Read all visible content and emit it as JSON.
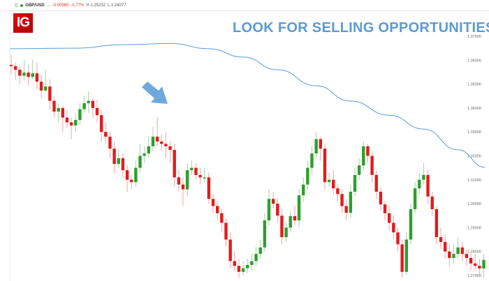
{
  "header": {
    "symbol": "GBP/USD",
    "change": "-0.00960",
    "change_pct": "-0.77%",
    "high": "H 1.25232",
    "low": "L 1.24077",
    "status_color": "#2ca02c"
  },
  "logo": {
    "text": "IG"
  },
  "headline": "LOOK FOR SELLING OPPORTUNITIES",
  "colors": {
    "up": "#2ca02c",
    "down": "#e31b1b",
    "ma": "#5b9bd5",
    "arrow": "#6fa8dc"
  },
  "chart_data": {
    "type": "candlestick",
    "title": "",
    "ylim": [
      1.2675,
      1.3745
    ],
    "yticks": [
      "1.37000",
      "1.36000",
      "1.35000",
      "1.34000",
      "1.33000",
      "1.32000",
      "1.31000",
      "1.30000",
      "1.29000",
      "1.28000",
      "1.27000"
    ],
    "grid": false,
    "ohlc": [
      [
        1.358,
        1.3625,
        1.354,
        1.3575
      ],
      [
        1.3575,
        1.359,
        1.352,
        1.356
      ],
      [
        1.356,
        1.3575,
        1.35,
        1.3535
      ],
      [
        1.3535,
        1.36,
        1.3515,
        1.3548
      ],
      [
        1.3548,
        1.358,
        1.3495,
        1.353
      ],
      [
        1.353,
        1.3605,
        1.352,
        1.3545
      ],
      [
        1.3545,
        1.359,
        1.348,
        1.351
      ],
      [
        1.351,
        1.354,
        1.344,
        1.3473
      ],
      [
        1.3473,
        1.356,
        1.3465,
        1.349
      ],
      [
        1.349,
        1.352,
        1.3395,
        1.343
      ],
      [
        1.343,
        1.345,
        1.336,
        1.3385
      ],
      [
        1.3385,
        1.342,
        1.334,
        1.34
      ],
      [
        1.34,
        1.341,
        1.33,
        1.336
      ],
      [
        1.336,
        1.339,
        1.332,
        1.334
      ],
      [
        1.334,
        1.336,
        1.327,
        1.3327
      ],
      [
        1.3327,
        1.338,
        1.33,
        1.335
      ],
      [
        1.335,
        1.342,
        1.333,
        1.3395
      ],
      [
        1.3395,
        1.345,
        1.338,
        1.342
      ],
      [
        1.342,
        1.347,
        1.338,
        1.343
      ],
      [
        1.343,
        1.344,
        1.336,
        1.34
      ],
      [
        1.34,
        1.3435,
        1.334,
        1.337
      ],
      [
        1.337,
        1.339,
        1.326,
        1.33
      ],
      [
        1.33,
        1.334,
        1.325,
        1.328
      ],
      [
        1.328,
        1.33,
        1.319,
        1.323
      ],
      [
        1.323,
        1.326,
        1.313,
        1.3166
      ],
      [
        1.3166,
        1.323,
        1.315,
        1.319
      ],
      [
        1.319,
        1.321,
        1.311,
        1.314
      ],
      [
        1.314,
        1.316,
        1.305,
        1.31
      ],
      [
        1.31,
        1.312,
        1.306,
        1.309
      ],
      [
        1.309,
        1.318,
        1.307,
        1.315
      ],
      [
        1.315,
        1.325,
        1.313,
        1.32
      ],
      [
        1.32,
        1.324,
        1.317,
        1.321
      ],
      [
        1.321,
        1.328,
        1.319,
        1.324
      ],
      [
        1.324,
        1.332,
        1.322,
        1.328
      ],
      [
        1.328,
        1.336,
        1.324,
        1.326
      ],
      [
        1.326,
        1.329,
        1.322,
        1.325
      ],
      [
        1.325,
        1.33,
        1.319,
        1.324
      ],
      [
        1.324,
        1.326,
        1.317,
        1.3225
      ],
      [
        1.3225,
        1.325,
        1.307,
        1.311
      ],
      [
        1.311,
        1.314,
        1.305,
        1.308
      ],
      [
        1.308,
        1.311,
        1.299,
        1.306
      ],
      [
        1.306,
        1.317,
        1.303,
        1.314
      ],
      [
        1.314,
        1.318,
        1.312,
        1.315
      ],
      [
        1.315,
        1.317,
        1.31,
        1.312
      ],
      [
        1.312,
        1.315,
        1.308,
        1.311
      ],
      [
        1.311,
        1.315,
        1.309,
        1.311
      ],
      [
        1.311,
        1.313,
        1.3,
        1.302
      ],
      [
        1.302,
        1.304,
        1.296,
        1.299
      ],
      [
        1.299,
        1.301,
        1.293,
        1.296
      ],
      [
        1.296,
        1.298,
        1.288,
        1.292
      ],
      [
        1.292,
        1.294,
        1.282,
        1.285
      ],
      [
        1.285,
        1.288,
        1.273,
        1.276
      ],
      [
        1.276,
        1.28,
        1.272,
        1.274
      ],
      [
        1.274,
        1.277,
        1.269,
        1.2715
      ],
      [
        1.2715,
        1.276,
        1.27,
        1.273
      ],
      [
        1.273,
        1.277,
        1.271,
        1.2744
      ],
      [
        1.2744,
        1.279,
        1.272,
        1.276
      ],
      [
        1.276,
        1.282,
        1.274,
        1.279
      ],
      [
        1.279,
        1.285,
        1.277,
        1.2817
      ],
      [
        1.2817,
        1.296,
        1.28,
        1.293
      ],
      [
        1.293,
        1.306,
        1.291,
        1.302
      ],
      [
        1.302,
        1.305,
        1.298,
        1.3
      ],
      [
        1.3,
        1.302,
        1.292,
        1.295
      ],
      [
        1.295,
        1.298,
        1.283,
        1.286
      ],
      [
        1.286,
        1.292,
        1.284,
        1.29
      ],
      [
        1.29,
        1.297,
        1.288,
        1.2948
      ],
      [
        1.2948,
        1.299,
        1.291,
        1.293
      ],
      [
        1.293,
        1.306,
        1.29,
        1.3035
      ],
      [
        1.3035,
        1.311,
        1.301,
        1.308
      ],
      [
        1.308,
        1.318,
        1.306,
        1.315
      ],
      [
        1.315,
        1.324,
        1.312,
        1.321
      ],
      [
        1.321,
        1.33,
        1.319,
        1.327
      ],
      [
        1.327,
        1.328,
        1.318,
        1.323
      ],
      [
        1.323,
        1.325,
        1.306,
        1.309
      ],
      [
        1.309,
        1.313,
        1.307,
        1.31
      ],
      [
        1.31,
        1.314,
        1.304,
        1.3064
      ],
      [
        1.3064,
        1.308,
        1.301,
        1.304
      ],
      [
        1.304,
        1.306,
        1.296,
        1.299
      ],
      [
        1.299,
        1.302,
        1.293,
        1.2962
      ],
      [
        1.2962,
        1.308,
        1.294,
        1.305
      ],
      [
        1.305,
        1.315,
        1.303,
        1.312
      ],
      [
        1.312,
        1.319,
        1.31,
        1.316
      ],
      [
        1.316,
        1.326,
        1.314,
        1.324
      ],
      [
        1.324,
        1.325,
        1.317,
        1.32
      ],
      [
        1.32,
        1.322,
        1.309,
        1.312
      ],
      [
        1.312,
        1.314,
        1.302,
        1.305
      ],
      [
        1.305,
        1.307,
        1.297,
        1.2997
      ],
      [
        1.2997,
        1.301,
        1.293,
        1.296
      ],
      [
        1.296,
        1.299,
        1.289,
        1.292
      ],
      [
        1.292,
        1.295,
        1.285,
        1.288
      ],
      [
        1.288,
        1.29,
        1.28,
        1.283
      ],
      [
        1.283,
        1.285,
        1.269,
        1.2715
      ],
      [
        1.2715,
        1.288,
        1.27,
        1.285
      ],
      [
        1.285,
        1.3,
        1.283,
        1.2977
      ],
      [
        1.2977,
        1.309,
        1.296,
        1.3064
      ],
      [
        1.3064,
        1.313,
        1.304,
        1.31
      ],
      [
        1.31,
        1.317,
        1.308,
        1.312
      ],
      [
        1.312,
        1.314,
        1.3,
        1.303
      ],
      [
        1.303,
        1.305,
        1.295,
        1.2977
      ],
      [
        1.2977,
        1.299,
        1.283,
        1.286
      ],
      [
        1.286,
        1.29,
        1.281,
        1.284
      ],
      [
        1.284,
        1.287,
        1.277,
        1.28
      ],
      [
        1.28,
        1.283,
        1.274,
        1.2773
      ],
      [
        1.2773,
        1.283,
        1.275,
        1.279
      ],
      [
        1.279,
        1.286,
        1.277,
        1.2817
      ],
      [
        1.2817,
        1.284,
        1.276,
        1.279
      ],
      [
        1.279,
        1.281,
        1.274,
        1.2773
      ],
      [
        1.2773,
        1.28,
        1.272,
        1.275
      ],
      [
        1.275,
        1.279,
        1.272,
        1.274
      ],
      [
        1.274,
        1.277,
        1.27,
        1.2729
      ],
      [
        1.2729,
        1.279,
        1.269,
        1.2765
      ]
    ],
    "moving_average": {
      "index": [
        0,
        14,
        27,
        37,
        46,
        54,
        62,
        71,
        79,
        88,
        96,
        104,
        110
      ],
      "values": [
        1.3648,
        1.365,
        1.3665,
        1.367,
        1.3648,
        1.3613,
        1.356,
        1.3493,
        1.3429,
        1.337,
        1.3312,
        1.3225,
        1.3152
      ]
    },
    "annotation": {
      "type": "arrow",
      "direction": "down-right"
    }
  }
}
